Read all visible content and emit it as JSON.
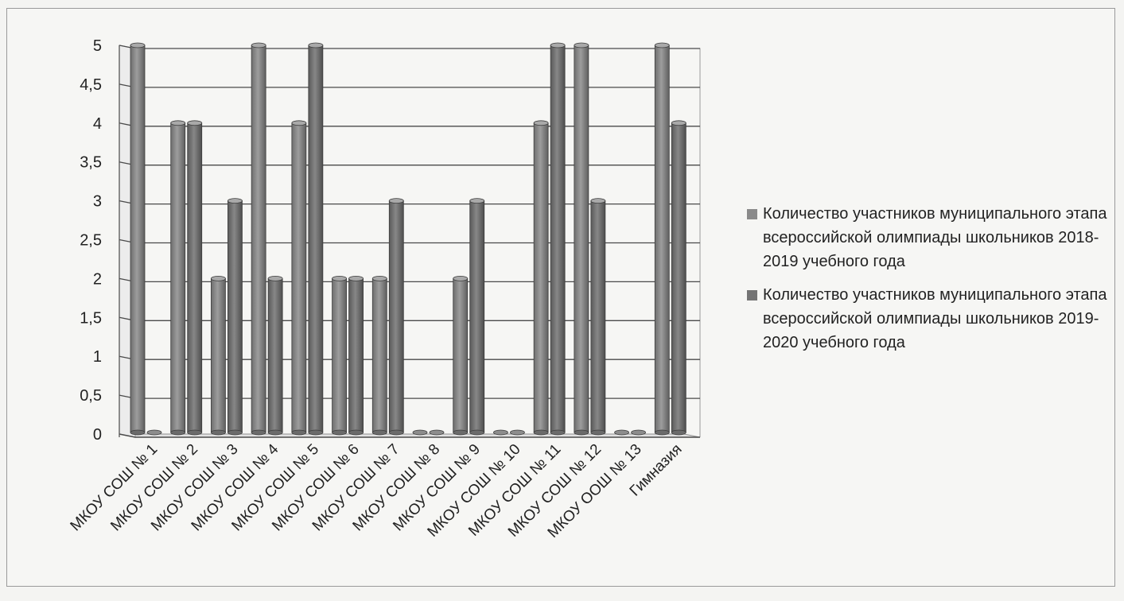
{
  "chart_data": {
    "type": "bar",
    "categories": [
      "МКОУ СОШ № 1",
      "МКОУ СОШ № 2",
      "МКОУ СОШ № 3",
      "МКОУ СОШ № 4",
      "МКОУ СОШ № 5",
      "МКОУ СОШ № 6",
      "МКОУ СОШ № 7",
      "МКОУ СОШ № 8",
      "МКОУ СОШ № 9",
      "МКОУ СОШ № 10",
      "МКОУ СОШ № 11",
      "МКОУ СОШ № 12",
      "МКОУ ООШ № 13",
      "Гимназия"
    ],
    "series": [
      {
        "name": "Количество участников муниципального этапа всероссийской олимпиады школьников 2018-2019 учебного года",
        "values": [
          5,
          4,
          2,
          5,
          4,
          2,
          2,
          0,
          2,
          0,
          4,
          5,
          0,
          5
        ],
        "color": "#8a8a8a"
      },
      {
        "name": "Количество участников муниципального этапа всероссийской олимпиады школьников 2019-2020 учебного года",
        "values": [
          0,
          4,
          3,
          2,
          5,
          2,
          3,
          0,
          3,
          0,
          5,
          3,
          0,
          4
        ],
        "color": "#747474"
      }
    ],
    "yticks": [
      "0",
      "0,5",
      "1",
      "1,5",
      "2",
      "2,5",
      "3",
      "3,5",
      "4",
      "4,5",
      "5"
    ],
    "ylim": [
      0,
      5
    ],
    "grid": true,
    "legend_position": "right"
  }
}
